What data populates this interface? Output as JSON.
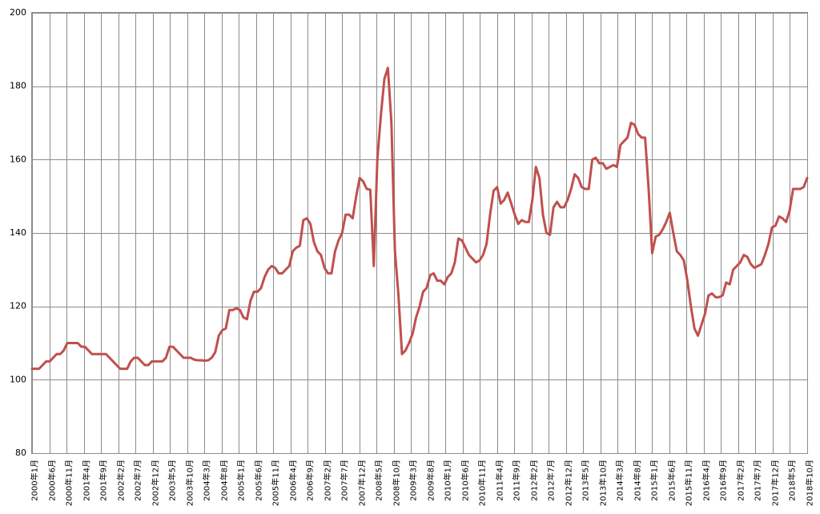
{
  "chart_data": {
    "type": "line",
    "title": "",
    "xlabel": "",
    "ylabel": "",
    "ylim": [
      80,
      200
    ],
    "yticks": [
      80,
      100,
      120,
      140,
      160,
      180,
      200
    ],
    "grid": true,
    "legend": "none",
    "line_color": "#c0504d",
    "grid_color": "#8c8c8c",
    "x_tick_labels": [
      "2000年1月",
      "2000年6月",
      "2000年11月",
      "2001年4月",
      "2001年9月",
      "2002年2月",
      "2002年7月",
      "2002年12月",
      "2003年5月",
      "2003年10月",
      "2004年3月",
      "2004年8月",
      "2005年1月",
      "2005年6月",
      "2005年11月",
      "2006年4月",
      "2006年9月",
      "2007年2月",
      "2007年7月",
      "2007年12月",
      "2008年5月",
      "2008年10月",
      "2009年3月",
      "2009年8月",
      "2010年1月",
      "2010年6月",
      "2010年11月",
      "2011年4月",
      "2011年9月",
      "2012年2月",
      "2012年7月",
      "2012年12月",
      "2013年5月",
      "2013年10月",
      "2014年3月",
      "2014年8月",
      "2015年1月",
      "2015年6月",
      "2015年11月",
      "2016年4月",
      "2016年9月",
      "2017年2月",
      "2017年7月",
      "2017年12月",
      "2018年5月",
      "2018年10月"
    ],
    "series": [
      {
        "values": [
          103,
          103,
          103,
          104,
          105,
          105,
          106,
          107,
          107,
          108,
          110,
          110,
          110,
          110,
          109,
          109,
          108,
          107,
          107,
          107,
          107,
          107,
          106,
          105,
          104,
          103,
          103,
          103,
          105,
          106,
          106,
          105,
          104,
          104,
          105,
          105,
          105,
          105,
          106,
          109,
          109,
          108,
          107,
          106,
          106,
          106,
          105.5,
          105.3,
          105.3,
          105.2,
          105.3,
          106,
          107.5,
          112,
          113.5,
          114,
          119,
          119,
          119.5,
          119,
          117,
          116.5,
          121.5,
          124,
          124,
          125,
          128,
          130,
          131,
          130.5,
          129,
          129,
          130,
          131,
          135,
          136,
          136.5,
          143.5,
          144,
          142.5,
          137.5,
          135,
          134,
          130.5,
          129,
          129,
          135,
          138,
          140,
          145,
          145,
          144,
          150,
          155,
          154,
          152,
          151.8,
          131,
          160,
          172,
          182,
          185,
          170,
          135,
          123,
          107,
          108,
          110,
          112.5,
          117,
          120,
          124,
          125,
          128.5,
          129,
          127,
          127,
          126,
          128,
          129,
          132,
          138.5,
          138,
          136,
          134,
          133,
          132,
          132.5,
          134,
          137,
          145,
          151.5,
          152.5,
          148,
          149,
          151,
          148,
          145,
          142.5,
          143.5,
          143,
          143,
          149,
          158,
          155,
          145,
          140,
          139.5,
          147,
          148.5,
          147,
          147,
          149,
          152,
          156,
          155,
          152.5,
          152,
          152,
          160,
          160.5,
          159,
          159,
          157.5,
          158,
          158.5,
          158,
          164,
          165,
          166,
          170,
          169.5,
          167,
          166,
          166,
          152,
          134.5,
          139,
          139.5,
          141,
          143,
          145.5,
          140,
          135,
          134,
          132.5,
          127,
          120,
          114,
          112,
          115,
          118,
          123,
          123.5,
          122.5,
          122.5,
          123,
          126.5,
          126,
          130,
          131,
          132,
          134,
          133.5,
          131.5,
          130.5,
          131,
          131.5,
          134,
          137,
          141.5,
          142,
          144.5,
          144,
          143,
          146,
          152,
          152,
          152,
          152.5,
          155
        ]
      }
    ]
  }
}
